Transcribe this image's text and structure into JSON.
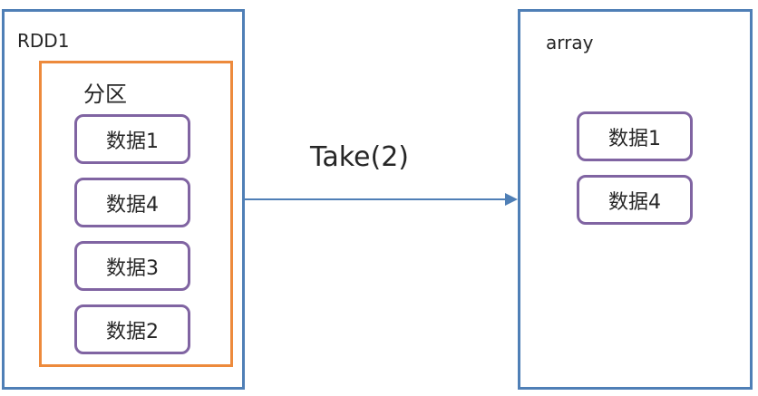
{
  "rdd": {
    "title": "RDD1",
    "partition_label": "分区",
    "items": [
      "数据1",
      "数据4",
      "数据3",
      "数据2"
    ]
  },
  "operation": {
    "label": "Take(2)"
  },
  "result": {
    "title": "array",
    "items": [
      "数据1",
      "数据4"
    ]
  },
  "colors": {
    "container_border": "#4f7fb6",
    "partition_border": "#ed8a3c",
    "item_border": "#8064a2",
    "arrow": "#4f7fb6"
  }
}
